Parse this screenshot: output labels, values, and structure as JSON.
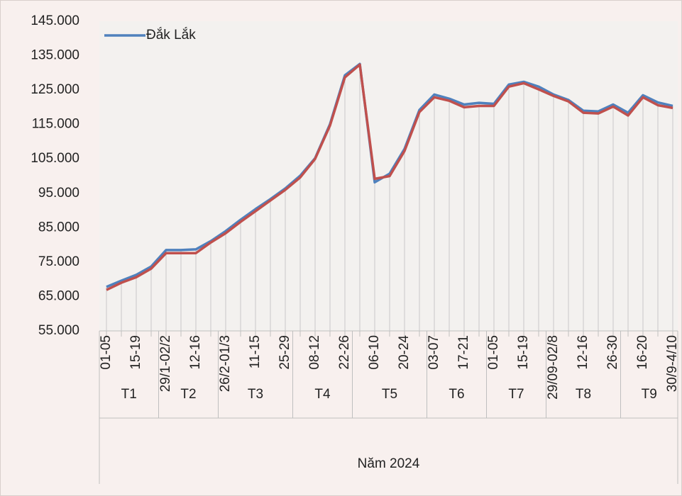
{
  "chart_data": {
    "type": "line",
    "categories": [
      "01-05",
      null,
      "15-19",
      null,
      "29/1-02/2",
      null,
      "12-16",
      null,
      "26/2-01/3",
      null,
      "11-15",
      null,
      "25-29",
      null,
      "08-12",
      null,
      "22-26",
      null,
      "06-10",
      null,
      "20-24",
      null,
      "03-07",
      null,
      "17-21",
      null,
      "01-05",
      null,
      "15-19",
      null,
      "29/09-02/8",
      null,
      "12-16",
      null,
      "26-30",
      null,
      "16-20",
      null,
      "30/9-4/10"
    ],
    "x_groups": [
      {
        "label": "T1",
        "size": 4
      },
      {
        "label": "T2",
        "size": 4
      },
      {
        "label": "T3",
        "size": 5
      },
      {
        "label": "T4",
        "size": 4
      },
      {
        "label": "T5",
        "size": 5
      },
      {
        "label": "T6",
        "size": 4
      },
      {
        "label": "T7",
        "size": 4
      },
      {
        "label": "T8",
        "size": 5
      },
      {
        "label": "T9",
        "size": 4
      }
    ],
    "x_super_label": "Năm 2024",
    "series": [
      {
        "name": "Đắk Lắk",
        "color": "#4f81bd",
        "values": [
          67800,
          69600,
          71300,
          73700,
          78500,
          78500,
          78700,
          81100,
          84000,
          87300,
          90400,
          93300,
          96400,
          100100,
          105200,
          115100,
          129300,
          132600,
          98200,
          100700,
          107900,
          119200,
          123700,
          122500,
          120800,
          121300,
          121000,
          126600,
          127400,
          126000,
          123700,
          122100,
          119000,
          118800,
          120800,
          118400,
          123500,
          121400,
          120400
        ]
      },
      {
        "color": "#c0504d",
        "values": [
          66900,
          69000,
          70600,
          73100,
          77600,
          77600,
          77600,
          80700,
          83400,
          86700,
          89800,
          92900,
          96000,
          99600,
          105000,
          114700,
          128700,
          132400,
          99200,
          100000,
          107300,
          118600,
          122900,
          121900,
          120000,
          120400,
          120400,
          126000,
          127000,
          125200,
          123300,
          121700,
          118400,
          118200,
          120200,
          117600,
          122900,
          120600,
          119800
        ]
      }
    ],
    "ylim": [
      55000,
      145000
    ],
    "yticks": [
      {
        "value": 55000,
        "label": "55.000"
      },
      {
        "value": 65000,
        "label": "65.000"
      },
      {
        "value": 75000,
        "label": "75.000"
      },
      {
        "value": 85000,
        "label": "85.000"
      },
      {
        "value": 95000,
        "label": "95.000"
      },
      {
        "value": 105000,
        "label": "105.000"
      },
      {
        "value": 115000,
        "label": "115.000"
      },
      {
        "value": 125000,
        "label": "125.000"
      },
      {
        "value": 135000,
        "label": "135.000"
      },
      {
        "value": 145000,
        "label": "145.000"
      }
    ],
    "drop_lines": true,
    "legend": "top-left"
  }
}
